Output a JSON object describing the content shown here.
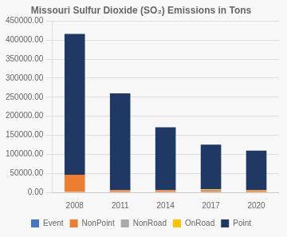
{
  "chart_data": {
    "type": "bar",
    "title": "Missouri Sulfur Dioxide (SO₂) Emissions in Tons",
    "categories": [
      "2008",
      "2011",
      "2014",
      "2017",
      "2020"
    ],
    "series": [
      {
        "name": "Event",
        "color": "#4472c4",
        "values": [
          0,
          0,
          0,
          0,
          0
        ]
      },
      {
        "name": "NonPoint",
        "color": "#ed7d31",
        "values": [
          46000,
          5000,
          5000,
          4000,
          5000
        ]
      },
      {
        "name": "NonRoad",
        "color": "#a9a9a9",
        "values": [
          0,
          1000,
          1000,
          3000,
          1000
        ]
      },
      {
        "name": "OnRoad",
        "color": "#ffc000",
        "values": [
          0,
          0,
          0,
          1500,
          500
        ]
      },
      {
        "name": "Point",
        "color": "#203864",
        "values": [
          370000,
          254000,
          165000,
          117000,
          103000
        ]
      }
    ],
    "stacked": true,
    "ylim": [
      0,
      450000
    ],
    "yticks": [
      {
        "value": 0,
        "label": "0.00"
      },
      {
        "value": 50000,
        "label": "50000.00"
      },
      {
        "value": 100000,
        "label": "100000.00"
      },
      {
        "value": 150000,
        "label": "150000.00"
      },
      {
        "value": 200000,
        "label": "200000.00"
      },
      {
        "value": 250000,
        "label": "250000.00"
      },
      {
        "value": 300000,
        "label": "300000.00"
      },
      {
        "value": 350000,
        "label": "350000.00"
      },
      {
        "value": 400000,
        "label": "400000.00"
      },
      {
        "value": 450000,
        "label": "450000.00"
      }
    ],
    "grid": true,
    "legend": "bottom"
  }
}
